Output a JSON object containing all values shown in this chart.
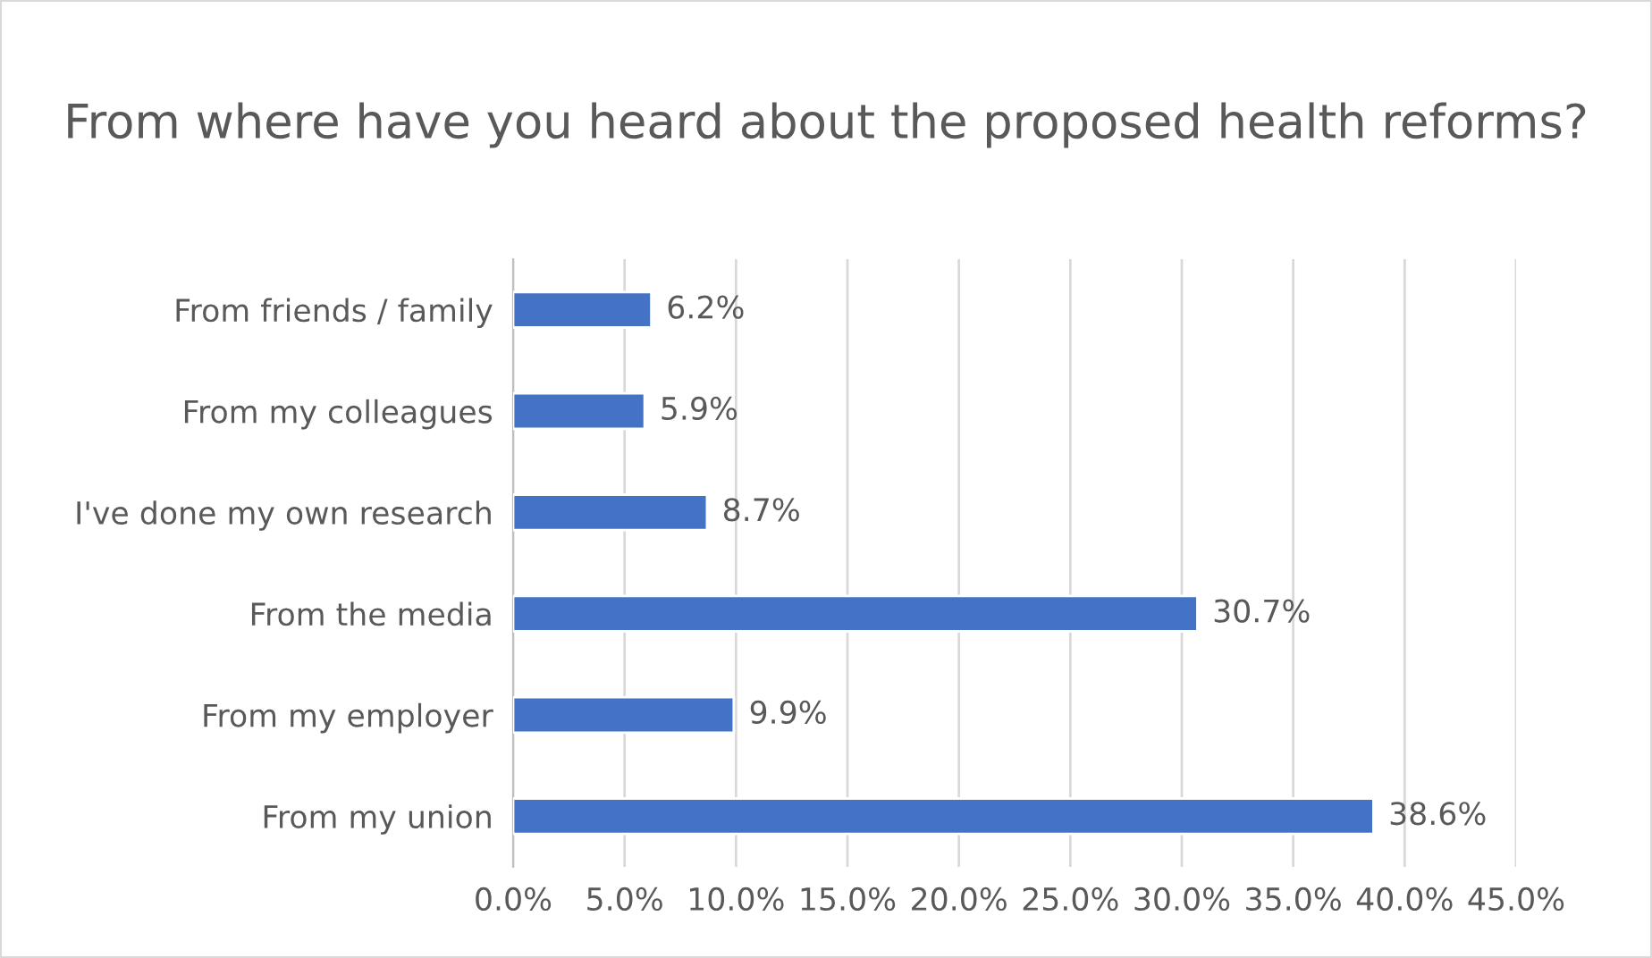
{
  "chart_data": {
    "type": "bar",
    "orientation": "horizontal",
    "title": "From where have you heard about the proposed health reforms?",
    "categories": [
      "From friends / family",
      "From my colleagues",
      "I've done my own research",
      "From the media",
      "From my employer",
      "From my union"
    ],
    "values": [
      6.2,
      5.9,
      8.7,
      30.7,
      9.9,
      38.6
    ],
    "value_labels": [
      "6.2%",
      "5.9%",
      "8.7%",
      "30.7%",
      "9.9%",
      "38.6%"
    ],
    "color": "#4472c4",
    "xlim": [
      0,
      45
    ],
    "xticks": [
      {
        "value": 0,
        "label": "0.0%"
      },
      {
        "value": 5,
        "label": "5.0%"
      },
      {
        "value": 10,
        "label": "10.0%"
      },
      {
        "value": 15,
        "label": "15.0%"
      },
      {
        "value": 20,
        "label": "20.0%"
      },
      {
        "value": 25,
        "label": "25.0%"
      },
      {
        "value": 30,
        "label": "30.0%"
      },
      {
        "value": 35,
        "label": "35.0%"
      },
      {
        "value": 40,
        "label": "40.0%"
      },
      {
        "value": 45,
        "label": "45.0%"
      }
    ],
    "grid": "x",
    "legend": false
  }
}
